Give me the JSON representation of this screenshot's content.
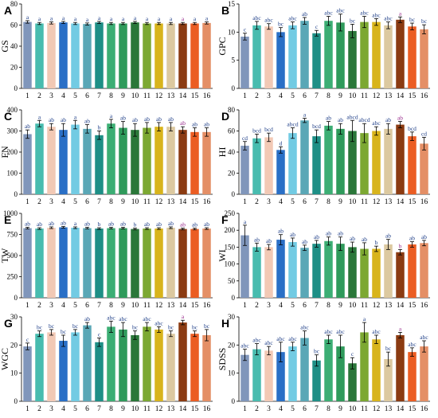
{
  "chart_data": [
    {
      "panel": "A",
      "type": "bar",
      "ylabel": "GS",
      "categories": [
        "1",
        "2",
        "3",
        "4",
        "5",
        "6",
        "7",
        "8",
        "9",
        "10",
        "11",
        "12",
        "13",
        "14",
        "15",
        "16"
      ],
      "ylim": [
        0,
        80
      ],
      "yticks": [
        0,
        20,
        40,
        60,
        80
      ],
      "values": [
        63,
        61.5,
        62,
        62.5,
        61.5,
        61,
        62.5,
        61.5,
        61.5,
        62.5,
        61.5,
        61.5,
        61.5,
        61.5,
        61.5,
        62
      ],
      "errors": [
        1.2,
        1,
        1,
        1,
        1,
        1,
        1,
        1,
        1,
        1,
        1,
        1,
        1,
        1,
        1,
        1
      ],
      "letters": [
        "a",
        "a",
        "a",
        "a",
        "a",
        "a",
        "a",
        "a",
        "a",
        "a",
        "a",
        "a",
        "a",
        "a",
        "a",
        "a"
      ]
    },
    {
      "panel": "B",
      "type": "bar",
      "ylabel": "GPC",
      "categories": [
        "1",
        "2",
        "3",
        "4",
        "5",
        "6",
        "7",
        "8",
        "9",
        "10",
        "11",
        "12",
        "13",
        "14",
        "15",
        "16"
      ],
      "ylim": [
        0,
        15
      ],
      "yticks": [
        0,
        5,
        10,
        15
      ],
      "values": [
        9.2,
        11.2,
        11,
        10,
        11.2,
        12,
        9.8,
        12,
        11.7,
        10.2,
        11.8,
        11.8,
        11.2,
        12.2,
        11,
        10.5
      ],
      "errors": [
        0.6,
        0.7,
        0.5,
        0.8,
        0.6,
        0.6,
        0.5,
        0.8,
        1.5,
        1.2,
        1,
        0.6,
        0.6,
        0.5,
        0.6,
        0.8
      ],
      "letters": [
        "c",
        "abc",
        "abc",
        "bc",
        "abc",
        "ab",
        "c",
        "abc",
        "abc",
        "bc",
        "abc",
        "abc",
        "abc",
        "a",
        "bc",
        "bc"
      ]
    },
    {
      "panel": "C",
      "type": "bar",
      "ylabel": "FN",
      "categories": [
        "1",
        "2",
        "3",
        "4",
        "5",
        "6",
        "7",
        "8",
        "9",
        "10",
        "11",
        "12",
        "13",
        "14",
        "15",
        "16"
      ],
      "ylim": [
        0,
        400
      ],
      "yticks": [
        0,
        100,
        200,
        300,
        400
      ],
      "values": [
        285,
        335,
        320,
        305,
        330,
        310,
        280,
        335,
        315,
        305,
        315,
        320,
        320,
        305,
        295,
        295
      ],
      "errors": [
        20,
        15,
        15,
        30,
        20,
        20,
        20,
        20,
        30,
        30,
        25,
        20,
        20,
        15,
        20,
        20
      ],
      "letters": [
        "ab",
        "a",
        "ab",
        "ab",
        "a",
        "ab",
        "b",
        "a",
        "ab",
        "ab",
        "ab",
        "ab",
        "ab",
        "ab",
        "ab",
        "ab"
      ]
    },
    {
      "panel": "D",
      "type": "bar",
      "ylabel": "HI",
      "categories": [
        "1",
        "2",
        "3",
        "4",
        "5",
        "6",
        "7",
        "8",
        "9",
        "10",
        "11",
        "12",
        "13",
        "14",
        "15",
        "16"
      ],
      "ylim": [
        0,
        80
      ],
      "yticks": [
        0,
        20,
        40,
        60,
        80
      ],
      "values": [
        46,
        53,
        54,
        42,
        58,
        70,
        55,
        65,
        62,
        60,
        58,
        60,
        62,
        66,
        55,
        48
      ],
      "errors": [
        4,
        4,
        4,
        3,
        5,
        2,
        6,
        4,
        5,
        10,
        9,
        4,
        5,
        3,
        4,
        6
      ],
      "letters": [
        "cd",
        "bcd",
        "bcd",
        "d",
        "abcd",
        "a",
        "bcd",
        "ab",
        "ab",
        "abcd",
        "abcd",
        "abc",
        "ab",
        "ab",
        "bcd",
        "cd"
      ]
    },
    {
      "panel": "E",
      "type": "bar",
      "ylabel": "TW",
      "categories": [
        "1",
        "2",
        "3",
        "4",
        "5",
        "6",
        "7",
        "8",
        "9",
        "10",
        "11",
        "12",
        "13",
        "14",
        "15",
        "16"
      ],
      "ylim": [
        0,
        1000
      ],
      "yticks": [
        0,
        250,
        500,
        750,
        1000
      ],
      "values": [
        825,
        820,
        830,
        835,
        830,
        825,
        820,
        825,
        825,
        815,
        820,
        820,
        830,
        815,
        815,
        820
      ],
      "errors": [
        10,
        10,
        10,
        10,
        10,
        10,
        10,
        10,
        10,
        10,
        10,
        10,
        10,
        10,
        10,
        10
      ],
      "letters": [
        "ab",
        "ab",
        "ab",
        "ab",
        "a",
        "ab",
        "b",
        "ab",
        "ab",
        "b",
        "ab",
        "ab",
        "ab",
        "ab",
        "ab",
        "ab"
      ]
    },
    {
      "panel": "F",
      "type": "bar",
      "ylabel": "WI",
      "categories": [
        "1",
        "2",
        "3",
        "4",
        "5",
        "6",
        "7",
        "8",
        "9",
        "10",
        "11",
        "12",
        "13",
        "14",
        "15",
        "16"
      ],
      "ylim": [
        0,
        250
      ],
      "yticks": [
        0,
        50,
        100,
        150,
        200,
        250
      ],
      "values": [
        185,
        150,
        150,
        172,
        165,
        148,
        160,
        168,
        160,
        150,
        145,
        145,
        158,
        135,
        158,
        162
      ],
      "errors": [
        30,
        12,
        8,
        15,
        12,
        8,
        10,
        12,
        20,
        15,
        18,
        8,
        15,
        8,
        8,
        8
      ],
      "letters": [
        "a",
        "ab",
        "ab",
        "ab",
        "ab",
        "ab",
        "ab",
        "ab",
        "ab",
        "ab",
        "ab",
        "b",
        "ab",
        "b",
        "ab",
        "ab"
      ]
    },
    {
      "panel": "G",
      "type": "bar",
      "ylabel": "WGC",
      "categories": [
        "1",
        "2",
        "3",
        "4",
        "5",
        "6",
        "7",
        "8",
        "9",
        "10",
        "11",
        "12",
        "13",
        "14",
        "15",
        "16"
      ],
      "ylim": [
        0,
        30
      ],
      "yticks": [
        0,
        10,
        20,
        30
      ],
      "values": [
        19.5,
        24,
        24.5,
        21.5,
        24.5,
        27,
        21,
        26.5,
        25.5,
        23.5,
        26.5,
        25.5,
        24,
        28,
        24,
        23.5
      ],
      "errors": [
        1.2,
        1,
        1,
        2,
        1,
        1,
        1.5,
        2,
        2.5,
        1.5,
        1.5,
        1,
        1,
        0.8,
        1,
        2
      ],
      "letters": [
        "c",
        "bc",
        "bc",
        "bc",
        "bc",
        "ab",
        "c",
        "abc",
        "abc",
        "bc",
        "abc",
        "abc",
        "bc",
        "a",
        "bc",
        "bc"
      ]
    },
    {
      "panel": "H",
      "type": "bar",
      "ylabel": "SDSS",
      "categories": [
        "1",
        "2",
        "3",
        "4",
        "5",
        "6",
        "7",
        "8",
        "9",
        "10",
        "11",
        "12",
        "13",
        "14",
        "15",
        "16"
      ],
      "ylim": [
        0,
        30
      ],
      "yticks": [
        0,
        10,
        20,
        30
      ],
      "values": [
        16.5,
        18.5,
        18,
        17.5,
        19.5,
        22.5,
        14.5,
        22,
        19.5,
        13.5,
        24.5,
        22,
        15,
        23.5,
        17.5,
        19.5
      ],
      "errors": [
        2,
        2,
        1.5,
        3.5,
        1.5,
        2.5,
        2,
        1.5,
        4,
        2,
        3.5,
        1.5,
        2.5,
        1,
        1.5,
        2
      ],
      "letters": [
        "abc",
        "abc",
        "abc",
        "abc",
        "abc",
        "abc",
        "bc",
        "abc",
        "abc",
        "c",
        "a",
        "abc",
        "bc",
        "a",
        "abc",
        "abc"
      ]
    }
  ],
  "colors": {
    "bars": [
      "#8096bb",
      "#48bcaf",
      "#f2c9b5",
      "#2a6fc6",
      "#72cbe3",
      "#5aa7b6",
      "#1e8f86",
      "#3cae74",
      "#2f9a5b",
      "#2a7739",
      "#7ca832",
      "#d8b41c",
      "#dcc9a0",
      "#8b3b12",
      "#eb5d23",
      "#e48f66"
    ],
    "text_dark": "#1f3f88",
    "text_purple": "#9b2f8e",
    "errorbar": "#000000"
  }
}
